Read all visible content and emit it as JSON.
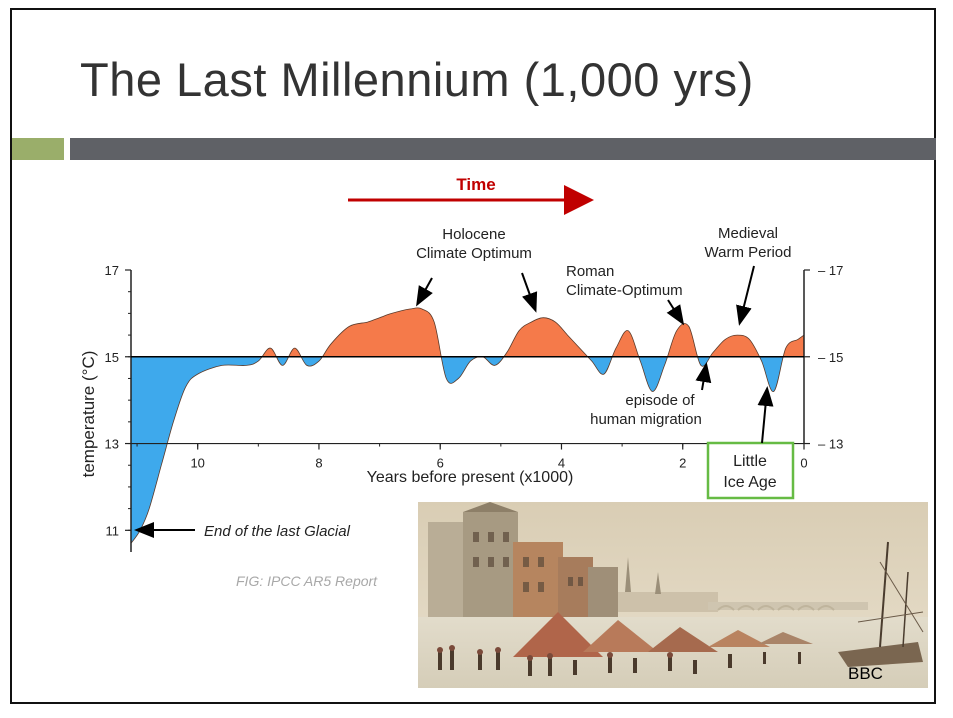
{
  "slide": {
    "title": "The Last Millennium (1,000 yrs)",
    "source": "FIG: IPCC AR5 Report",
    "photo_credit": "BBC"
  },
  "colors": {
    "warm": "#f57a4a",
    "cold": "#3ea9ec",
    "time_arrow": "#c00000",
    "title_bar": "#5f6166",
    "accent_bar": "#9aae6a",
    "ice_box": "#66bb44"
  },
  "chart_data": {
    "type": "area",
    "xlabel": "Years before present (x1000)",
    "ylabel": "temperature (°C)",
    "xlim": [
      11.1,
      0
    ],
    "ylim": [
      10.5,
      17
    ],
    "baseline": 15,
    "x_ticks": [
      "10",
      "8",
      "6",
      "4",
      "2",
      "0"
    ],
    "y_ticks": [
      "17",
      "15",
      "13",
      "11"
    ],
    "right_y_ticks": [
      "17",
      "15",
      "13"
    ],
    "time_label": "Time",
    "series": [
      {
        "x": [
          11.1,
          10.95,
          10.8,
          10.6,
          10.4,
          10.2,
          10.0,
          9.6,
          9.2,
          9.0,
          8.8,
          8.6,
          8.4,
          8.2,
          8.0,
          7.8,
          7.5,
          7.2,
          7.0,
          6.8,
          6.5,
          6.3,
          6.1,
          5.9,
          5.7,
          5.5,
          5.3,
          5.1,
          4.9,
          4.7,
          4.5,
          4.3,
          4.1,
          3.9,
          3.7,
          3.5,
          3.3,
          3.1,
          2.9,
          2.7,
          2.5,
          2.3,
          2.1,
          1.9,
          1.7,
          1.5,
          1.3,
          1.1,
          0.9,
          0.7,
          0.5,
          0.3,
          0.1,
          0.0
        ],
        "y": [
          10.7,
          11.0,
          11.5,
          12.5,
          13.5,
          14.3,
          14.6,
          14.8,
          14.8,
          14.9,
          15.2,
          14.8,
          15.2,
          14.8,
          14.9,
          15.3,
          15.7,
          15.8,
          15.9,
          16.0,
          16.1,
          16.1,
          15.8,
          14.5,
          14.5,
          14.9,
          15.0,
          14.8,
          15.1,
          15.6,
          15.8,
          15.9,
          15.8,
          15.5,
          15.2,
          14.9,
          14.6,
          15.2,
          15.6,
          14.9,
          14.2,
          14.8,
          15.6,
          15.7,
          14.8,
          15.1,
          15.4,
          15.5,
          15.4,
          14.9,
          14.2,
          15.2,
          15.4,
          15.5
        ]
      }
    ],
    "annotations": [
      {
        "lines": [
          "Holocene",
          "Climate Optimum"
        ]
      },
      {
        "lines": [
          "Roman",
          "Climate-Optimum"
        ]
      },
      {
        "lines": [
          "Medieval",
          "Warm Period"
        ]
      },
      {
        "lines": [
          "episode of",
          "human migration"
        ]
      },
      {
        "lines": [
          "Little",
          "Ice Age"
        ]
      },
      {
        "lines": [
          "End of the last Glacial"
        ]
      }
    ]
  }
}
